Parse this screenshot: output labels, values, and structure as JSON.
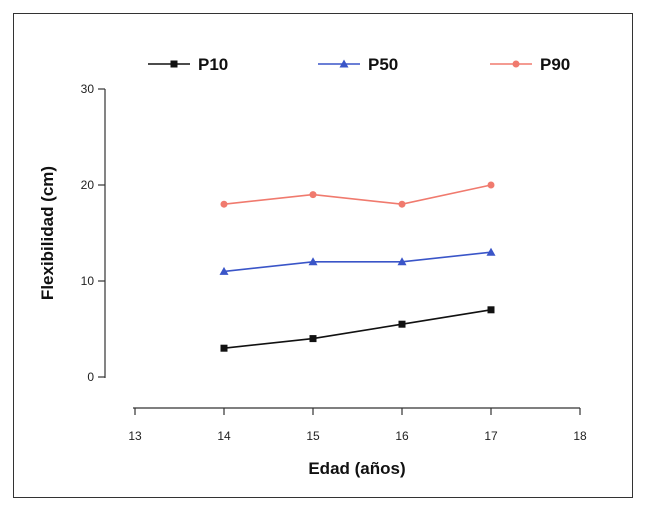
{
  "chart_data": {
    "type": "line",
    "xlabel": "Edad (años)",
    "ylabel": "Flexibilidad (cm)",
    "xlim": [
      13,
      18
    ],
    "ylim": [
      0,
      30
    ],
    "xticks": [
      "13",
      "14",
      "15",
      "16",
      "17",
      "18"
    ],
    "yticks": [
      "0",
      "10",
      "20",
      "30"
    ],
    "legend_position": "top",
    "grid": false,
    "x": [
      14,
      15,
      16,
      17
    ],
    "series": [
      {
        "name": "P10",
        "values": [
          3,
          4,
          5.5,
          7
        ],
        "color": "#111111",
        "marker": "square"
      },
      {
        "name": "P50",
        "values": [
          11,
          12,
          12,
          13
        ],
        "color": "#3a55c8",
        "marker": "triangle"
      },
      {
        "name": "P90",
        "values": [
          18,
          19,
          18,
          20
        ],
        "color": "#f07a6e",
        "marker": "circle"
      }
    ]
  }
}
